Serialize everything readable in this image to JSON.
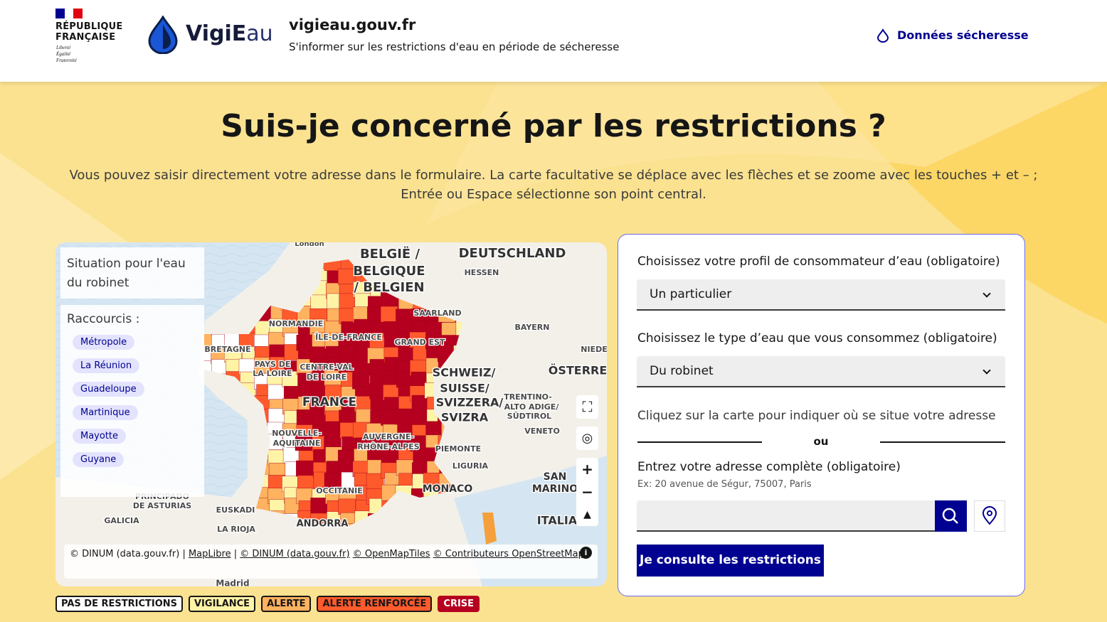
{
  "header": {
    "republique": [
      "RÉPUBLIQUE",
      "FRANÇAISE"
    ],
    "motto": [
      "Liberté",
      "Égalité",
      "Fraternité"
    ],
    "brand_strong": "VigiE",
    "brand_light": "au",
    "site_title": "vigieau.gouv.fr",
    "tagline": "S'informer sur les restrictions d'eau en période de sécheresse",
    "nav_link": "Données sécheresse"
  },
  "hero": {
    "title": "Suis-je concerné par les restrictions ?",
    "description": "Vous pouvez saisir directement votre adresse dans le formulaire. La carte facultative se déplace avec les flèches et se zoome avec les touches + et – ; Entrée ou Espace sélectionne son point central."
  },
  "map": {
    "panel_title": "Situation pour l'eau du robinet",
    "shortcuts_title": "Raccourcis :",
    "shortcuts": [
      "Métropole",
      "La Réunion",
      "Guadeloupe",
      "Martinique",
      "Mayotte",
      "Guyane"
    ],
    "labels": [
      "London",
      "BELGIË /",
      "BELGIQUE",
      "/ BELGIEN",
      "DEUTSCHLAND",
      "HESSEN",
      "SAARLAND",
      "BAYERN",
      "NIEDE",
      "NORMANDIE",
      "ÎLE-DE-FRANCE",
      "GRAND EST",
      "BRETAGNE",
      "PAYS DE",
      "LA LOIRE",
      "CENTRE-VAL",
      "DE LOIRE",
      "SCHWEIZ/",
      "SUISSE/",
      "SVIZZERA/",
      "SVIZRA",
      "ÖSTERREI",
      "TRENTINO-",
      "ALTO ADIGE/",
      "SÜDTIROL",
      "FRANCE",
      "VENETO",
      "NOUVELLE-",
      "AQUITAINE",
      "AUVERGNE-",
      "RHÔNE-ALPES",
      "PIEMONTE",
      "LIGURIA",
      "SAN",
      "MARINO",
      "OCCITANIE",
      "MONACO",
      "PRINCIPADO",
      "DE ASTURIAS",
      "EUSKADI",
      "GALICIA",
      "ANDORRA",
      "ITALIA",
      "LA RIOJA",
      "Madrid"
    ],
    "attribution": [
      "© DINUM (data.gouv.fr) |",
      "MapLibre",
      "|",
      "© DINUM (data.gouv.fr)",
      "© OpenMapTiles",
      "© Contributeurs OpenStreetMap"
    ]
  },
  "legend": [
    {
      "label": "PAS DE RESTRICTIONS",
      "color": "#ffffff"
    },
    {
      "label": "VIGILANCE",
      "color": "#fff3a6"
    },
    {
      "label": "ALERTE",
      "color": "#ffb25f"
    },
    {
      "label": "ALERTE RENFORCÉE",
      "color": "#ff5a2c"
    },
    {
      "label": "CRISE",
      "color": "#b5001f"
    }
  ],
  "form": {
    "profile_label": "Choisissez votre profil de consommateur d’eau (obligatoire)",
    "profile_value": "Un particulier",
    "water_label": "Choisissez le type d’eau que vous consommez (obligatoire)",
    "water_value": "Du robinet",
    "map_hint": "Cliquez sur la carte pour indiquer où se situe votre adresse",
    "or": "ou",
    "address_label": "Entrez votre adresse complète (obligatoire)",
    "address_hint": "Ex: 20 avenue de Ségur, 75007, Paris",
    "submit": "Je consulte les restrictions"
  }
}
